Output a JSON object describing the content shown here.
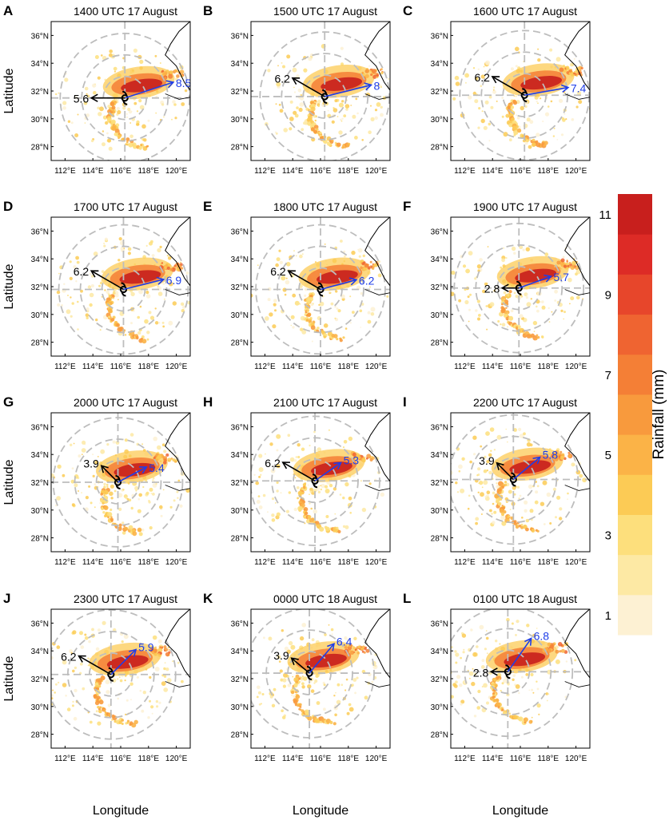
{
  "colors": {
    "circle": "#bdbdbd",
    "coast": "#000000",
    "black_arrow": "#000000",
    "blue_arrow": "#1f3ee8",
    "scale": [
      "#fdf1d3",
      "#fde9a4",
      "#fddf7c",
      "#fccb55",
      "#fbb347",
      "#f89a3d",
      "#f47f36",
      "#ef6431",
      "#e7462b",
      "#dd2b26",
      "#c81f1d"
    ]
  },
  "chart_data": {
    "type": "heatmap",
    "xlabel": "Longitude",
    "ylabel": "Latitude",
    "x_ticks": [
      "112°E",
      "114°E",
      "116°E",
      "118°E",
      "120°E"
    ],
    "y_ticks": [
      "28°N",
      "30°N",
      "32°N",
      "34°N",
      "36°N"
    ],
    "xlim": [
      111,
      121
    ],
    "ylim": [
      27,
      37
    ],
    "colorbar": {
      "label": "Rainfall (mm)",
      "ticks": [
        "1",
        "3",
        "5",
        "7",
        "9",
        "11"
      ],
      "range": [
        1,
        12
      ]
    },
    "panels": [
      {
        "id": "A",
        "title": "1400 UTC 17 August",
        "center": [
          116.3,
          31.5
        ],
        "black_value": "5.6",
        "black_angle": 180,
        "blue_value": "8.5",
        "blue_angle": 18
      },
      {
        "id": "B",
        "title": "1500 UTC 17 August",
        "center": [
          116.3,
          31.6
        ],
        "black_value": "6.2",
        "black_angle": 150,
        "blue_value": "8",
        "blue_angle": 14
      },
      {
        "id": "C",
        "title": "1600 UTC 17 August",
        "center": [
          116.3,
          31.7
        ],
        "black_value": "6.2",
        "black_angle": 150,
        "blue_value": "7.4",
        "blue_angle": 10
      },
      {
        "id": "D",
        "title": "1700 UTC 17 August",
        "center": [
          116.2,
          31.8
        ],
        "black_value": "6.2",
        "black_angle": 150,
        "blue_value": "6.9",
        "blue_angle": 14
      },
      {
        "id": "E",
        "title": "1800 UTC 17 August",
        "center": [
          116.0,
          31.8
        ],
        "black_value": "6.2",
        "black_angle": 150,
        "blue_value": "6.2",
        "blue_angle": 15
      },
      {
        "id": "F",
        "title": "1900 UTC 17 August",
        "center": [
          115.9,
          31.9
        ],
        "black_value": "2.8",
        "black_angle": 180,
        "blue_value": "5.7",
        "blue_angle": 20
      },
      {
        "id": "G",
        "title": "2000 UTC 17 August",
        "center": [
          115.8,
          32.0
        ],
        "black_value": "3.9",
        "black_angle": 135,
        "blue_value": "5.4",
        "blue_angle": 28
      },
      {
        "id": "H",
        "title": "2100 UTC 17 August",
        "center": [
          115.6,
          32.1
        ],
        "black_value": "6.2",
        "black_angle": 150,
        "blue_value": "5.3",
        "blue_angle": 35
      },
      {
        "id": "I",
        "title": "2200 UTC 17 August",
        "center": [
          115.5,
          32.2
        ],
        "black_value": "3.9",
        "black_angle": 135,
        "blue_value": "5.8",
        "blue_angle": 40
      },
      {
        "id": "J",
        "title": "2300 UTC 17 August",
        "center": [
          115.3,
          32.3
        ],
        "black_value": "6.2",
        "black_angle": 150,
        "blue_value": "5.9",
        "blue_angle": 45
      },
      {
        "id": "K",
        "title": "0000 UTC 18 August",
        "center": [
          115.2,
          32.4
        ],
        "black_value": "3.9",
        "black_angle": 140,
        "blue_value": "6.4",
        "blue_angle": 50
      },
      {
        "id": "L",
        "title": "0100 UTC 18 August",
        "center": [
          115.1,
          32.5
        ],
        "black_value": "2.8",
        "black_angle": 180,
        "blue_value": "6.8",
        "blue_angle": 55
      }
    ]
  }
}
